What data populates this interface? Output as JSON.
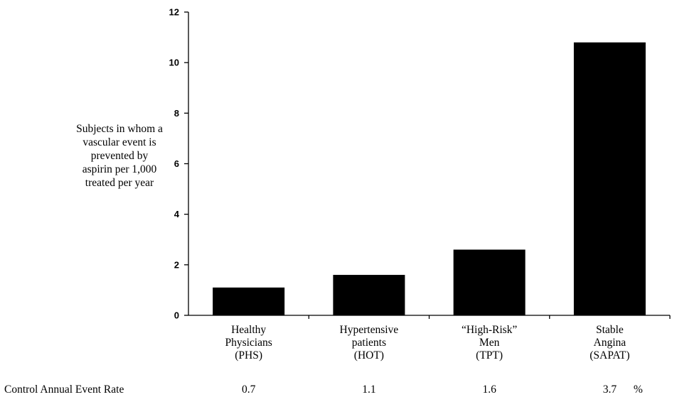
{
  "chart_data": {
    "type": "bar",
    "title": "",
    "xlabel": "",
    "ylabel_lines": [
      "Subjects in whom a",
      "vascular event is",
      "prevented by",
      "aspirin per 1,000",
      "treated per year"
    ],
    "ylim": [
      0,
      12
    ],
    "yticks": [
      "0",
      "2",
      "4",
      "6",
      "8",
      "10",
      "12"
    ],
    "grid": false,
    "legend": "none",
    "bar_color": "#000000",
    "categories": [
      [
        "Healthy",
        "Physicians",
        "(PHS)"
      ],
      [
        "Hypertensive",
        "patients",
        "(HOT)"
      ],
      [
        "“High-Risk”",
        "Men",
        "(TPT)"
      ],
      [
        "Stable",
        "Angina",
        "(SAPAT)"
      ]
    ],
    "values": [
      1.1,
      1.6,
      2.6,
      10.8
    ],
    "footer": {
      "label": "Control Annual Event Rate",
      "values": [
        "0.7",
        "1.1",
        "1.6",
        "3.7"
      ],
      "unit": "%"
    }
  }
}
